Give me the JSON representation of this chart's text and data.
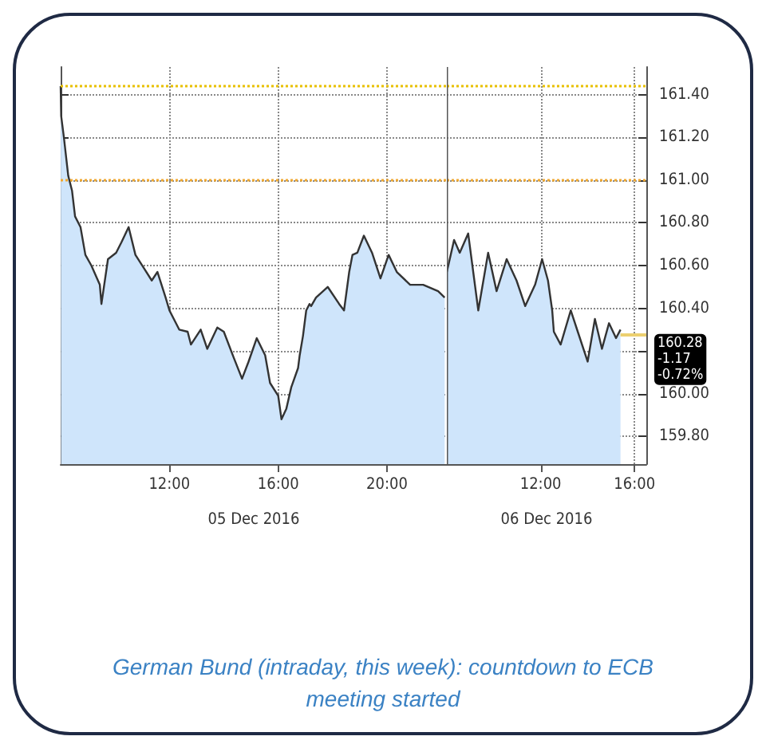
{
  "chart_data": [
    {
      "type": "area",
      "xlabel": "05 Dec 2016",
      "annotations": [
        "German Bund (intraday, this week): countdown to ECB meeting started"
      ],
      "x": [
        8,
        8.02,
        8.12,
        8.28,
        8.42,
        8.53,
        8.73,
        8.91,
        9.13,
        9.44,
        9.5,
        9.74,
        10.04,
        10.24,
        10.5,
        10.75,
        11.05,
        11.35,
        11.56,
        11.86,
        12.0,
        12.36,
        12.67,
        12.79,
        13.15,
        13.39,
        13.76,
        14.0,
        14.36,
        14.67,
        14.91,
        15.21,
        15.52,
        15.7,
        16.0,
        16.12,
        16.3,
        16.48,
        16.73,
        16.79,
        16.91,
        17.03,
        17.15,
        17.21,
        17.39,
        17.82,
        18.24,
        18.42,
        18.61,
        18.73,
        18.91,
        19.15,
        19.45,
        19.76,
        20.06,
        20.36,
        20.85,
        21.33,
        21.88,
        22.12
      ],
      "series": [
        {
          "color": "#333333",
          "values": [
            161.44,
            161.3,
            161.2,
            161.02,
            160.95,
            160.83,
            160.78,
            160.65,
            160.6,
            160.51,
            160.42,
            160.63,
            160.66,
            160.71,
            160.78,
            160.65,
            160.59,
            160.53,
            160.57,
            160.45,
            160.39,
            160.3,
            160.29,
            160.23,
            160.3,
            160.21,
            160.31,
            160.29,
            160.17,
            160.07,
            160.15,
            160.26,
            160.18,
            160.05,
            159.99,
            159.88,
            159.93,
            160.03,
            160.12,
            160.18,
            160.27,
            160.39,
            160.42,
            160.41,
            160.45,
            160.5,
            160.42,
            160.39,
            160.57,
            160.65,
            160.66,
            160.74,
            160.66,
            160.54,
            160.65,
            160.57,
            160.51,
            160.51,
            160.48,
            160.45
          ]
        }
      ],
      "xlim": [
        8,
        22.2
      ],
      "xticks": [
        {
          "value": 12,
          "label": "12:00"
        },
        {
          "value": 16,
          "label": "16:00"
        },
        {
          "value": 20,
          "label": "20:00"
        }
      ],
      "ylim": [
        159.67,
        161.53
      ],
      "yticks": [
        159.8,
        160,
        160.2,
        160.4,
        160.6,
        160.8,
        161,
        161.2,
        161.4
      ],
      "ref_lines": [
        {
          "axis": "y",
          "value": 161.44,
          "color": "#e8c000",
          "line_style": "dotted"
        },
        {
          "axis": "y",
          "value": 161.0,
          "color": "#f0a830",
          "line_style": "dotted"
        }
      ],
      "tick_labels": "x",
      "grid": true,
      "marker": "none",
      "line_style": "solid"
    },
    {
      "type": "area",
      "xlabel": "06 Dec 2016",
      "x": [
        8.0,
        8.31,
        8.55,
        8.91,
        9.34,
        9.76,
        10.12,
        10.55,
        10.97,
        11.34,
        11.76,
        12.06,
        12.31,
        12.49,
        12.56,
        12.85,
        13.28,
        13.58,
        14.0,
        14.31,
        14.61,
        14.91,
        15.21,
        15.4
      ],
      "series": [
        {
          "color": "#333333",
          "values": [
            160.57,
            160.72,
            160.66,
            160.75,
            160.39,
            160.66,
            160.48,
            160.63,
            160.53,
            160.41,
            160.51,
            160.63,
            160.53,
            160.39,
            160.29,
            160.23,
            160.39,
            160.29,
            160.15,
            160.35,
            160.21,
            160.33,
            160.26,
            160.3
          ]
        }
      ],
      "xlim": [
        8,
        16.5
      ],
      "xticks": [
        {
          "value": 12,
          "label": "12:00"
        },
        {
          "value": 16,
          "label": "16:00"
        }
      ],
      "ylim": [
        159.67,
        161.53
      ],
      "yticks": [
        {
          "value": 159.8,
          "label": "159.80"
        },
        {
          "value": 160,
          "label": "160.00"
        },
        {
          "value": 160.2,
          "label": null
        },
        {
          "value": 160.4,
          "label": "160.40"
        },
        {
          "value": 160.6,
          "label": "160.60"
        },
        {
          "value": 160.8,
          "label": "160.80"
        },
        {
          "value": 161,
          "label": "161.00"
        },
        {
          "value": 161.2,
          "label": "161.20"
        },
        {
          "value": 161.4,
          "label": "161.40"
        }
      ],
      "ref_lines": [
        {
          "axis": "y",
          "value": 161.44,
          "color": "#e8c000",
          "line_style": "dotted"
        },
        {
          "axis": "y",
          "value": 161.0,
          "color": "#f0a830",
          "line_style": "dotted"
        },
        {
          "axis": "y",
          "value": 160.28,
          "color": "#ecd070",
          "line_style": "solid",
          "label": "160.28\n-1.17\n-0.72%"
        },
        {
          "axis": "x",
          "value": 8,
          "color": "#555555",
          "line_style": "solid"
        }
      ],
      "grid": true,
      "marker": "none",
      "line_style": "solid"
    }
  ]
}
